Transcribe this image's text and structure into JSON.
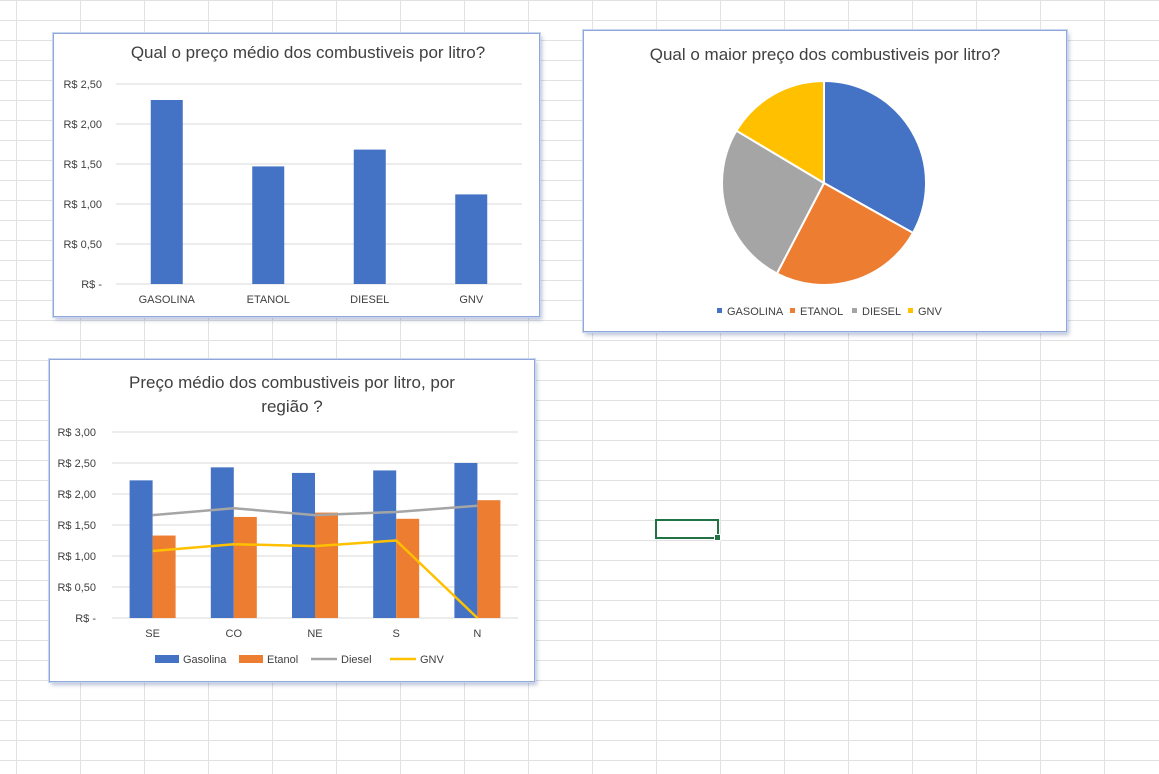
{
  "chart_data": [
    {
      "type": "bar",
      "title": "Qual o preço médio dos combustiveis por litro?",
      "categories": [
        "GASOLINA",
        "ETANOL",
        "DIESEL",
        "GNV"
      ],
      "values": [
        2.3,
        1.47,
        1.68,
        1.12
      ],
      "yticks": [
        "R$ -",
        "R$ 0,50",
        "R$ 1,00",
        "R$ 1,50",
        "R$ 2,00",
        "R$ 2,50"
      ],
      "ylim": [
        0,
        2.5
      ],
      "grid": true,
      "colors": [
        "#4472c4"
      ]
    },
    {
      "type": "pie",
      "title": "Qual o maior preço dos combustiveis por litro?",
      "categories": [
        "GASOLINA",
        "ETANOL",
        "DIESEL",
        "GNV"
      ],
      "values": [
        2.3,
        1.7,
        1.8,
        1.14
      ],
      "colors": [
        "#4472c4",
        "#ed7d31",
        "#a5a5a5",
        "#ffc000"
      ],
      "legend": "bottom"
    },
    {
      "type": "bar",
      "title_lines": [
        "Preço médio dos combustiveis por litro, por",
        "região ?"
      ],
      "categories": [
        "SE",
        "CO",
        "NE",
        "S",
        "N"
      ],
      "series": [
        {
          "name": "Gasolina",
          "type": "bar",
          "color": "#4472c4",
          "values": [
            2.22,
            2.43,
            2.34,
            2.38,
            2.5
          ]
        },
        {
          "name": "Etanol",
          "type": "bar",
          "color": "#ed7d31",
          "values": [
            1.33,
            1.63,
            1.7,
            1.6,
            1.9
          ]
        },
        {
          "name": "Diesel",
          "type": "line",
          "color": "#a5a5a5",
          "values": [
            1.66,
            1.77,
            1.66,
            1.71,
            1.81
          ]
        },
        {
          "name": "GNV",
          "type": "line",
          "color": "#ffc000",
          "values": [
            1.08,
            1.19,
            1.16,
            1.25,
            0
          ]
        }
      ],
      "yticks": [
        "R$ -",
        "R$ 0,50",
        "R$ 1,00",
        "R$ 1,50",
        "R$ 2,00",
        "R$ 2,50",
        "R$ 3,00"
      ],
      "ylim": [
        0,
        3.0
      ],
      "grid": true,
      "legend": "bottom"
    }
  ]
}
